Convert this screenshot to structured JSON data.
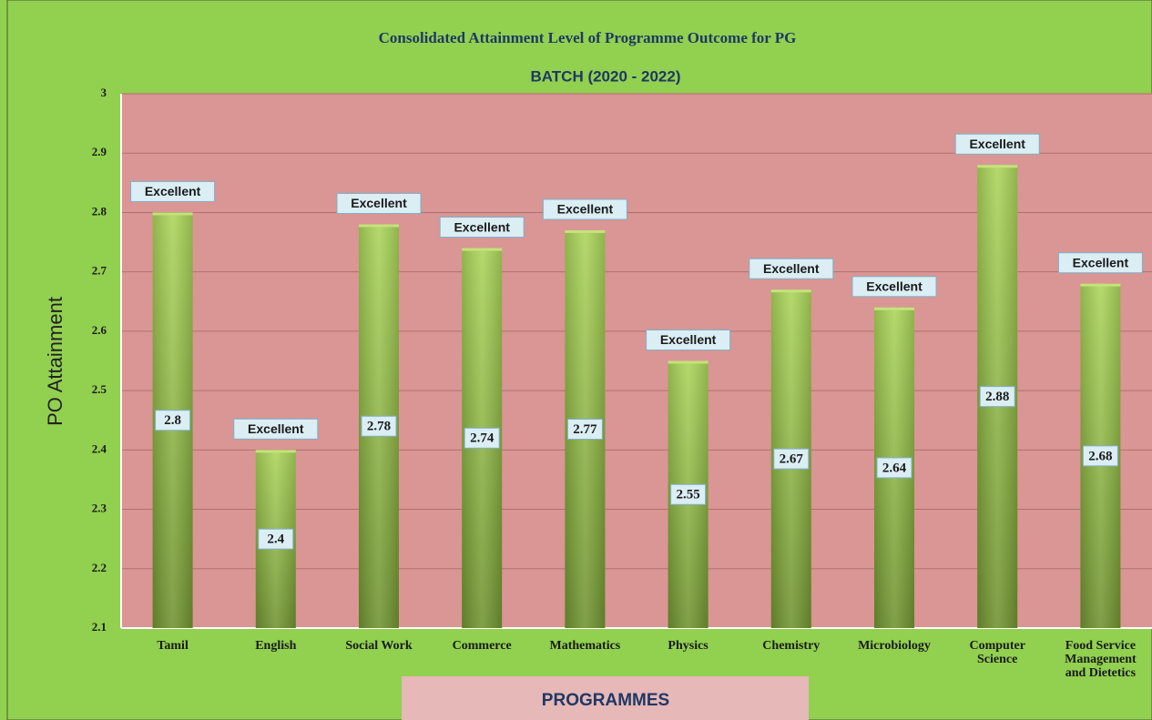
{
  "chart_data": {
    "type": "bar",
    "title": "Consolidated Attainment Level of Programme Outcome for PG",
    "subtitle": "BATCH (2020 - 2022)",
    "y_label": "PO Attainment",
    "x_label": "PROGRAMMES",
    "categories": [
      "Tamil",
      "English",
      "Social Work",
      "Commerce",
      "Mathematics",
      "Physics",
      "Chemistry",
      "Microbiology",
      "Computer Science",
      "Food Service Management and Dietetics"
    ],
    "values": [
      2.8,
      2.4,
      2.78,
      2.74,
      2.77,
      2.55,
      2.67,
      2.64,
      2.88,
      2.68
    ],
    "annotations": [
      "Excellent",
      "Excellent",
      "Excellent",
      "Excellent",
      "Excellent",
      "Excellent",
      "Excellent",
      "Excellent",
      "Excellent",
      "Excellent"
    ],
    "color": "#8db43e",
    "ylim": [
      2.1,
      3
    ],
    "yticks": [
      2.1,
      2.2,
      2.3,
      2.4,
      2.5,
      2.6,
      2.7,
      2.8,
      2.9,
      3
    ],
    "grid": true
  }
}
